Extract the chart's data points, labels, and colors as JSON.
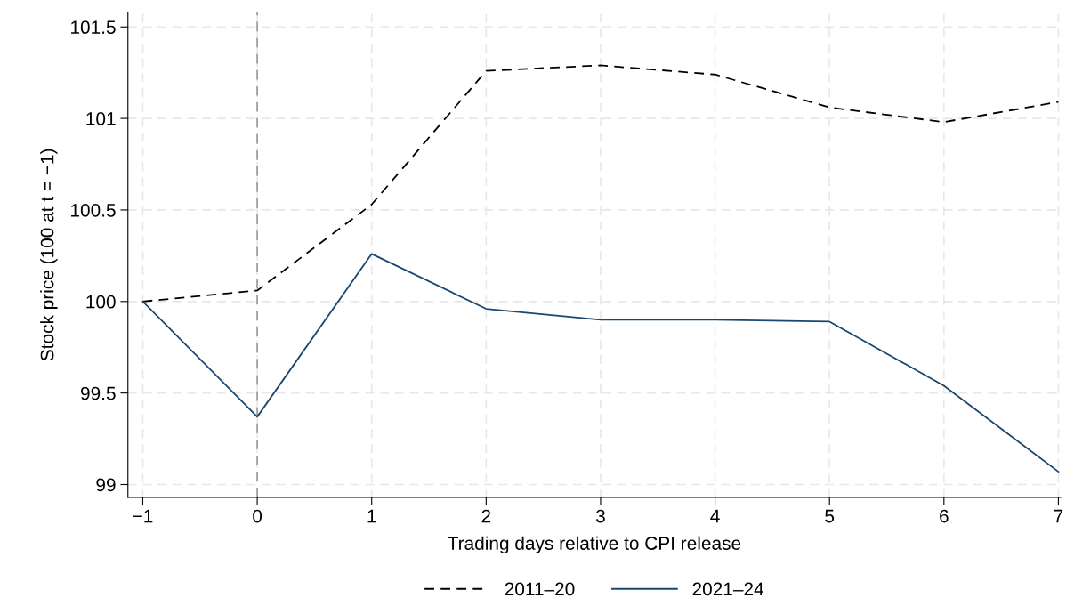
{
  "chart_data": {
    "type": "line",
    "xlabel": "Trading days relative to CPI release",
    "ylabel": "Stock price (100 at t = −1)",
    "x": [
      -1,
      0,
      1,
      2,
      3,
      4,
      5,
      6,
      7
    ],
    "series": [
      {
        "name": "2011–20",
        "color": "#000000",
        "line_style": "dashed",
        "values": [
          100,
          100.06,
          100.53,
          101.26,
          101.29,
          101.24,
          101.06,
          100.98,
          101.09
        ]
      },
      {
        "name": "2021–24",
        "color": "#1a476f",
        "line_style": "solid",
        "values": [
          100,
          99.37,
          100.26,
          99.96,
          99.9,
          99.9,
          99.89,
          99.54,
          99.07
        ]
      }
    ],
    "xlim": [
      -1.13,
      7.02
    ],
    "ylim": [
      98.93,
      101.58
    ],
    "xticks": [
      {
        "value": -1,
        "label": "−1"
      },
      0,
      1,
      2,
      3,
      4,
      5,
      6,
      7
    ],
    "yticks": [
      99,
      99.5,
      100,
      100.5,
      101,
      101.5
    ],
    "ref_lines": [
      {
        "axis": "x",
        "value": 0,
        "color": "#a0a0a0",
        "line_style": "dashed"
      }
    ],
    "grid": true,
    "legend": "bottom",
    "marker": "none"
  }
}
